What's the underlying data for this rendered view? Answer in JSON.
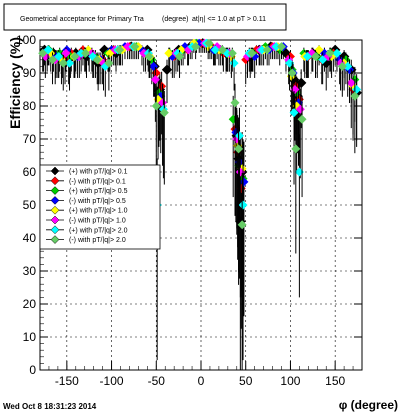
{
  "chart_data": {
    "type": "scatter",
    "title_left": "Geometrical acceptance for Primary Tra",
    "title_mid": "(degree)",
    "title_right": "at|η| <= 1.0 at pT > 0.11",
    "xlabel": "φ (degree)",
    "ylabel": "Efficiency (%)",
    "xlim": [
      -180,
      180
    ],
    "ylim": [
      0,
      100
    ],
    "xticks": [
      -150,
      -100,
      -50,
      0,
      50,
      100,
      150
    ],
    "yticks": [
      0,
      10,
      20,
      30,
      40,
      50,
      60,
      70,
      80,
      90,
      100
    ],
    "grid": true,
    "legend_position": "left-middle",
    "footer": "Wed Oct  8 18:31:23 2014",
    "series": [
      {
        "name": "(+) with pT/|q|> 0.1",
        "color": "#000000",
        "marker": "diamond",
        "x": [
          -175,
          -165,
          -155,
          -148,
          -140,
          -128,
          -115,
          -108,
          -95,
          -78,
          -60,
          -52,
          -46,
          -38,
          -25,
          -12,
          2,
          15,
          28,
          40,
          42,
          44,
          46,
          55,
          65,
          78,
          95,
          104,
          108,
          112,
          125,
          140,
          150,
          160,
          168,
          174
        ],
        "y": [
          97,
          96,
          95,
          94,
          96,
          95,
          93,
          97,
          96,
          98,
          97,
          92,
          85,
          91,
          97,
          98,
          99,
          97,
          96,
          71,
          64,
          45,
          60,
          95,
          97,
          98,
          96,
          88,
          83,
          87,
          96,
          93,
          97,
          95,
          91,
          84
        ]
      },
      {
        "name": "(-) with pT/|q|> 0.1",
        "color": "#ff0000",
        "marker": "diamond",
        "x": [
          -172,
          -160,
          -152,
          -145,
          -132,
          -120,
          -110,
          -98,
          -80,
          -62,
          -50,
          -44,
          -30,
          -15,
          0,
          12,
          25,
          38,
          41,
          45,
          50,
          62,
          80,
          100,
          106,
          110,
          120,
          135,
          148,
          158,
          170
        ],
        "y": [
          96,
          95,
          94,
          96,
          97,
          95,
          94,
          97,
          98,
          96,
          90,
          86,
          95,
          97,
          99,
          98,
          96,
          73,
          66,
          55,
          94,
          97,
          98,
          95,
          86,
          82,
          95,
          94,
          96,
          93,
          85
        ]
      },
      {
        "name": "(+) with pT/|q|> 0.5",
        "color": "#00cc00",
        "marker": "diamond",
        "x": [
          -170,
          -158,
          -146,
          -130,
          -118,
          -104,
          -90,
          -72,
          -55,
          -47,
          -35,
          -20,
          -5,
          10,
          22,
          36,
          42,
          47,
          58,
          72,
          88,
          102,
          107,
          115,
          130,
          145,
          162,
          172
        ],
        "y": [
          97,
          96,
          95,
          96,
          95,
          96,
          97,
          98,
          94,
          84,
          96,
          97,
          99,
          98,
          97,
          76,
          62,
          58,
          96,
          98,
          97,
          91,
          84,
          96,
          95,
          96,
          94,
          88
        ]
      },
      {
        "name": "(-) with pT/|q|> 0.5",
        "color": "#0000ff",
        "marker": "diamond",
        "x": [
          -176,
          -162,
          -150,
          -138,
          -125,
          -112,
          -100,
          -85,
          -66,
          -53,
          -45,
          -32,
          -18,
          -2,
          14,
          30,
          39,
          43,
          48,
          60,
          76,
          92,
          103,
          109,
          118,
          138,
          155,
          166
        ],
        "y": [
          96,
          95,
          97,
          95,
          96,
          94,
          97,
          98,
          97,
          92,
          83,
          95,
          98,
          99,
          97,
          96,
          72,
          63,
          57,
          95,
          97,
          98,
          90,
          81,
          95,
          96,
          94,
          91
        ]
      },
      {
        "name": "(+) with pT/|q|> 1.0",
        "color": "#ffff00",
        "marker": "diamond",
        "x": [
          -168,
          -156,
          -142,
          -126,
          -114,
          -102,
          -88,
          -70,
          -57,
          -48,
          -36,
          -22,
          -8,
          8,
          20,
          34,
          41,
          46,
          56,
          70,
          86,
          101,
          107,
          116,
          132,
          146,
          160,
          170
        ],
        "y": [
          96,
          94,
          95,
          97,
          94,
          96,
          97,
          98,
          95,
          82,
          96,
          97,
          99,
          98,
          97,
          95,
          68,
          61,
          96,
          97,
          98,
          89,
          80,
          95,
          97,
          95,
          93,
          86
        ]
      },
      {
        "name": "(-) with pT/|q|> 1.0",
        "color": "#ff00ff",
        "marker": "diamond",
        "x": [
          -174,
          -163,
          -151,
          -136,
          -122,
          -109,
          -96,
          -82,
          -64,
          -51,
          -43,
          -28,
          -14,
          4,
          18,
          32,
          40,
          44,
          52,
          66,
          82,
          98,
          105,
          111,
          124,
          142,
          156,
          168
        ],
        "y": [
          95,
          94,
          96,
          95,
          96,
          93,
          97,
          98,
          96,
          88,
          81,
          96,
          97,
          99,
          98,
          96,
          70,
          60,
          95,
          97,
          98,
          94,
          85,
          79,
          96,
          95,
          93,
          87
        ]
      },
      {
        "name": "(+) with pT/|q|> 2.0",
        "color": "#00ffff",
        "marker": "diamond",
        "x": [
          -171,
          -159,
          -147,
          -134,
          -121,
          -107,
          -93,
          -76,
          -59,
          -49,
          -42,
          -26,
          -10,
          6,
          16,
          29,
          37,
          43,
          47,
          54,
          68,
          84,
          99,
          104,
          110,
          119,
          136,
          152,
          164,
          174
        ],
        "y": [
          97,
          95,
          93,
          96,
          95,
          92,
          97,
          98,
          96,
          50,
          79,
          96,
          98,
          99,
          97,
          96,
          93,
          71,
          50,
          96,
          97,
          98,
          93,
          78,
          60,
          95,
          94,
          96,
          92,
          85
        ]
      },
      {
        "name": "(-) with pT/|q|> 2.0",
        "color": "#66cc66",
        "marker": "diamond",
        "x": [
          -177,
          -166,
          -154,
          -141,
          -129,
          -116,
          -103,
          -91,
          -74,
          -58,
          -50,
          -41,
          -24,
          -6,
          9,
          24,
          35,
          38,
          42,
          46,
          57,
          74,
          90,
          102,
          106,
          113,
          128,
          144,
          158,
          172
        ],
        "y": [
          96,
          94,
          93,
          95,
          96,
          94,
          93,
          97,
          98,
          95,
          80,
          78,
          95,
          98,
          99,
          97,
          96,
          81,
          67,
          44,
          96,
          97,
          98,
          90,
          67,
          76,
          95,
          96,
          92,
          83
        ]
      }
    ]
  }
}
